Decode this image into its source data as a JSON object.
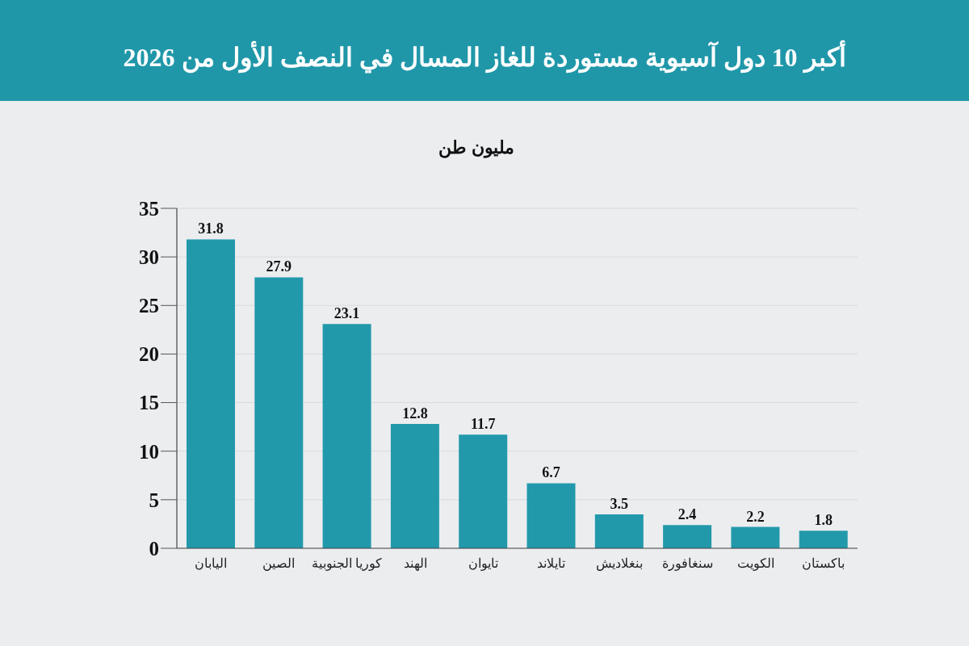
{
  "chart_data": {
    "type": "bar",
    "title": "أكبر 10 دول آسيوية مستوردة للغاز المسال في النصف الأول من 2026",
    "ylabel": "مليون طن",
    "categories": [
      "اليابان",
      "الصين",
      "كوريا الجنوبية",
      "الهند",
      "تايوان",
      "تايلاند",
      "بنغلاديش",
      "سنغافورة",
      "الكويت",
      "باكستان"
    ],
    "values": [
      31.8,
      27.9,
      23.1,
      12.8,
      11.7,
      6.7,
      3.5,
      2.4,
      2.2,
      1.8
    ],
    "color": "#2299ab",
    "ylim": [
      0,
      35
    ],
    "yticks": [
      0,
      5,
      10,
      15,
      20,
      25,
      30,
      35
    ],
    "grid": "y",
    "data_labels": true
  }
}
